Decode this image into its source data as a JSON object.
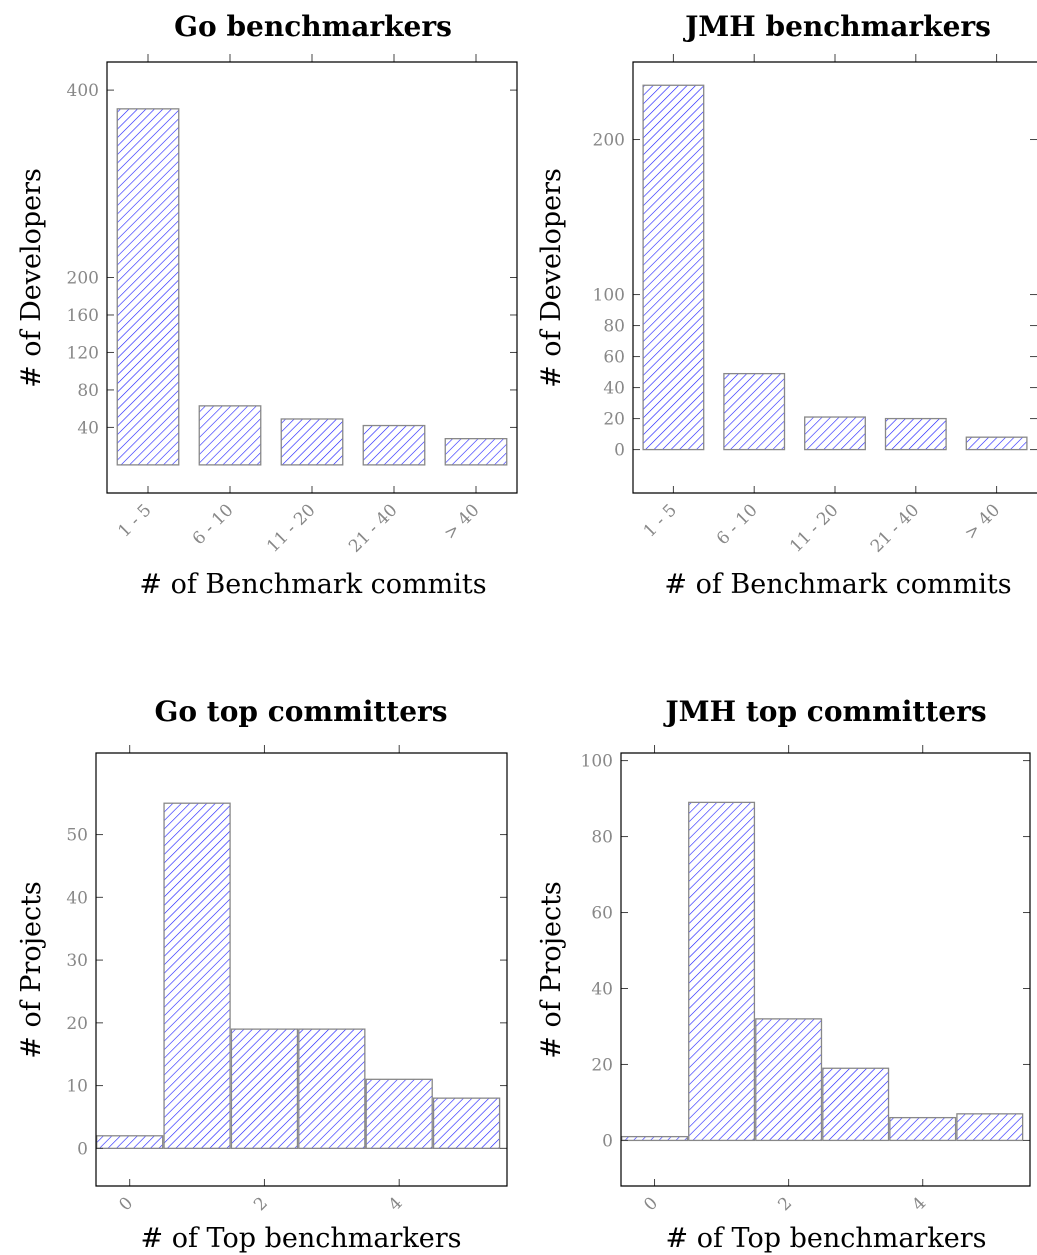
{
  "chart_data": [
    {
      "type": "bar",
      "title": "Go benchmarkers",
      "xlabel": "# of Benchmark commits",
      "ylabel": "# of Developers",
      "categories": [
        "1 - 5",
        "6 - 10",
        "11 - 20",
        "21 - 40",
        "> 40"
      ],
      "values": [
        380,
        63,
        49,
        42,
        28
      ],
      "yticks": [
        40,
        80,
        120,
        160,
        200,
        400
      ],
      "ylim": [
        -30,
        430
      ]
    },
    {
      "type": "bar",
      "title": "JMH benchmarkers",
      "xlabel": "# of Benchmark commits",
      "ylabel": "# of Developers",
      "categories": [
        "1 - 5",
        "6 - 10",
        "11 - 20",
        "21 - 40",
        "> 40"
      ],
      "values": [
        235,
        49,
        21,
        20,
        8
      ],
      "yticks": [
        0,
        20,
        40,
        60,
        80,
        100,
        200
      ],
      "ylim": [
        -28,
        250
      ]
    },
    {
      "type": "bar",
      "title": "Go top committers",
      "xlabel": "# of Top benchmarkers",
      "ylabel": "# of Projects",
      "categories": [
        0,
        1,
        2,
        3,
        4,
        5
      ],
      "values": [
        2,
        55,
        19,
        19,
        11,
        8
      ],
      "xticks": [
        0,
        2,
        4
      ],
      "yticks": [
        0,
        10,
        20,
        30,
        40,
        50
      ],
      "ylim": [
        -6,
        63
      ]
    },
    {
      "type": "bar",
      "title": "JMH top committers",
      "xlabel": "# of Top benchmarkers",
      "ylabel": "# of Projects",
      "categories": [
        0,
        1,
        2,
        3,
        4,
        5
      ],
      "values": [
        1,
        89,
        32,
        19,
        6,
        7
      ],
      "xticks": [
        0,
        2,
        4
      ],
      "yticks": [
        0,
        20,
        40,
        60,
        80,
        100
      ],
      "ylim": [
        -12,
        102
      ]
    }
  ]
}
